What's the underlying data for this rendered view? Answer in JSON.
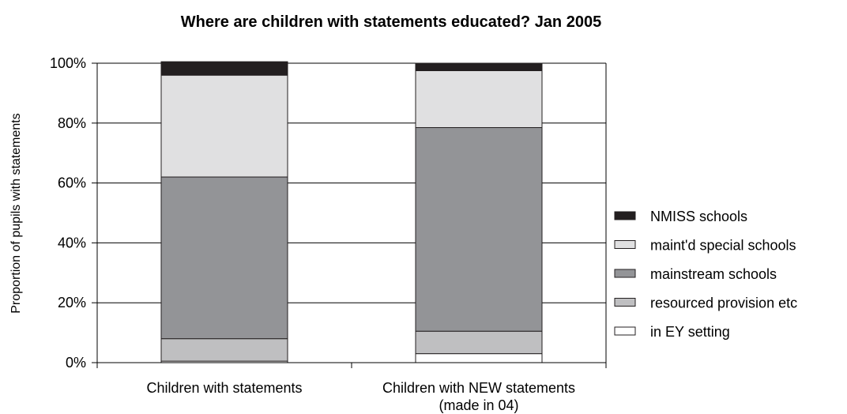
{
  "chart_data": {
    "type": "bar",
    "stacked": true,
    "title": "Where are children with statements educated? Jan 2005",
    "ylabel": "Proportion of pupils with statements",
    "ylim": [
      0,
      100
    ],
    "ytick_labels": [
      "0%",
      "20%",
      "40%",
      "60%",
      "80%",
      "100%"
    ],
    "categories": [
      [
        "Children with statements"
      ],
      [
        "Children with NEW statements",
        "(made in 04)"
      ]
    ],
    "series": [
      {
        "name": "in EY setting",
        "color": "#ffffff",
        "values": [
          0.5,
          3
        ]
      },
      {
        "name": "resourced provision etc",
        "color": "#bfbfc1",
        "values": [
          7.5,
          7.5
        ]
      },
      {
        "name": "mainstream schools",
        "color": "#939497",
        "values": [
          54,
          68
        ]
      },
      {
        "name": "maint'd special schools",
        "color": "#e0e0e1",
        "values": [
          34,
          19
        ]
      },
      {
        "name": "NMISS schools",
        "color": "#231f20",
        "values": [
          4.5,
          2.5
        ]
      }
    ],
    "legend_order": [
      "NMISS schools",
      "maint'd special schools",
      "mainstream schools",
      "resourced provision etc",
      "in EY setting"
    ],
    "legend_position": "right",
    "grid": true
  }
}
